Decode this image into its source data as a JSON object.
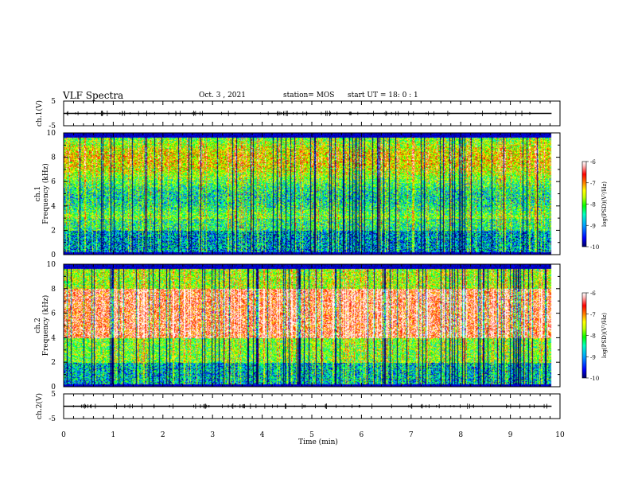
{
  "header": {
    "title": "VLF Spectra",
    "date": "Oct. 3 , 2021",
    "station": "station= MOS",
    "start": "start UT =  18: 0 : 1"
  },
  "colors": {
    "colormap": [
      "#000060",
      "#0000ff",
      "#00a0ff",
      "#00ffc0",
      "#00ff00",
      "#c0ff00",
      "#ffff00",
      "#ff8000",
      "#ff0000",
      "#ffc0c0",
      "#ffffff"
    ],
    "axis": "#000000"
  },
  "chart_data": [
    {
      "type": "line",
      "ylabel": "ch.1(V)",
      "ylim": [
        -5,
        5
      ],
      "yticks": [
        "5",
        "-5"
      ],
      "xlim": [
        0,
        10
      ],
      "series_level": 0
    },
    {
      "type": "heatmap",
      "ylabel": "ch.1\nFrequency (kHz)",
      "ylim": [
        0,
        10
      ],
      "yticks": [
        "0",
        "2",
        "4",
        "6",
        "8",
        "10"
      ],
      "xlim": [
        0,
        10
      ],
      "data_extent_x": [
        0,
        9.83
      ],
      "colorbar": {
        "label": "log(PSD)(V²/Hz)",
        "range": [
          -10,
          -6
        ],
        "ticks": [
          "-6",
          "-7",
          "-8",
          "-9",
          "-10"
        ]
      }
    },
    {
      "type": "heatmap",
      "ylabel": "ch.2\nFrequency (kHz)",
      "ylim": [
        0,
        10
      ],
      "yticks": [
        "0",
        "2",
        "4",
        "6",
        "8",
        "10"
      ],
      "xlim": [
        0,
        10
      ],
      "data_extent_x": [
        0,
        9.83
      ],
      "colorbar": {
        "label": "log(PSD)(V²/Hz)",
        "range": [
          -10,
          -6
        ],
        "ticks": [
          "-6",
          "-7",
          "-8",
          "-9",
          "-10"
        ]
      }
    },
    {
      "type": "line",
      "ylabel": "ch.2(V)",
      "ylim": [
        -5,
        5
      ],
      "yticks": [
        "5",
        "-5"
      ],
      "xlim": [
        0,
        10
      ],
      "series_level": 0
    }
  ],
  "xaxis": {
    "label": "Time (min)",
    "ticks": [
      "0",
      "1",
      "2",
      "3",
      "4",
      "5",
      "6",
      "7",
      "8",
      "9",
      "10"
    ]
  }
}
